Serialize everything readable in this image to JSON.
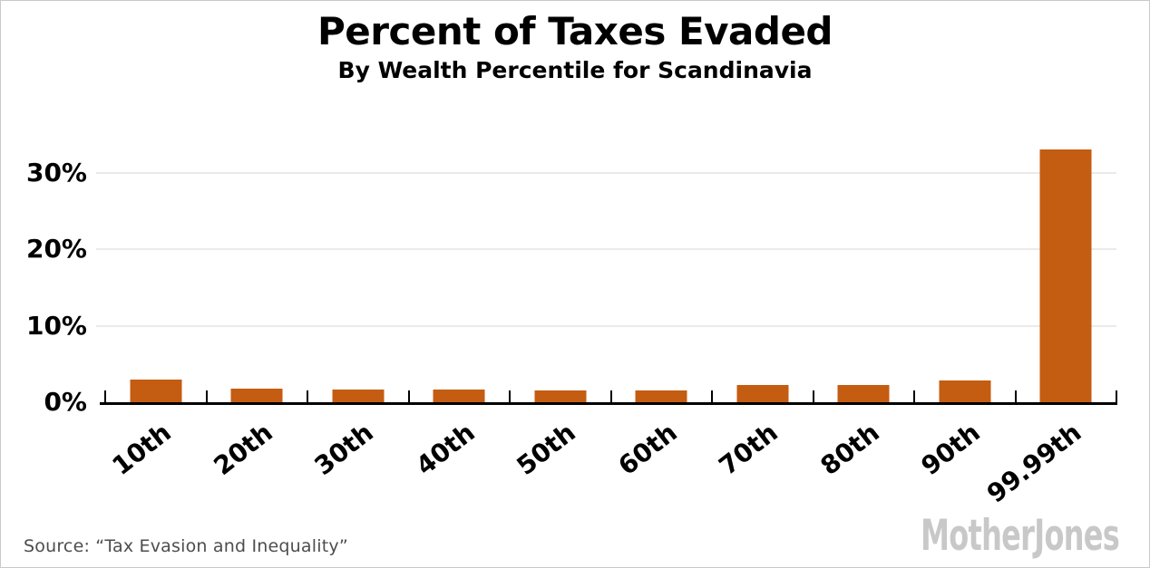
{
  "title": {
    "main": "Percent of Taxes Evaded",
    "sub": "By Wealth Percentile for Scandinavia"
  },
  "footer": {
    "source": "Source: “Tax Evasion and Inequality”",
    "logo": "MotherJones"
  },
  "colors": {
    "bar": "#c45c12",
    "gridline": "#eaeaea",
    "axis": "#000000",
    "source_text": "#4d4d4d",
    "logo": "#c8c8c8",
    "border": "#c9c9c9",
    "background": "#ffffff"
  },
  "chart_data": {
    "type": "bar",
    "title": "Percent of Taxes Evaded",
    "subtitle": "By Wealth Percentile for Scandinavia",
    "categories": [
      "10th",
      "20th",
      "30th",
      "40th",
      "50th",
      "60th",
      "70th",
      "80th",
      "90th",
      "99.99th"
    ],
    "values": [
      3.0,
      1.8,
      1.7,
      1.7,
      1.6,
      1.6,
      2.3,
      2.3,
      2.9,
      33.0
    ],
    "xlabel": "",
    "ylabel": "",
    "y_ticks": [
      {
        "value": 0,
        "label": "0%"
      },
      {
        "value": 10,
        "label": "10%"
      },
      {
        "value": 20,
        "label": "20%"
      },
      {
        "value": 30,
        "label": "30%"
      }
    ],
    "ylim": [
      0,
      34.7
    ],
    "grid": "horizontal",
    "legend": "none",
    "bar_color": "#c45c12",
    "x_tick_count": 11,
    "x_label_rotation_deg": -38
  }
}
